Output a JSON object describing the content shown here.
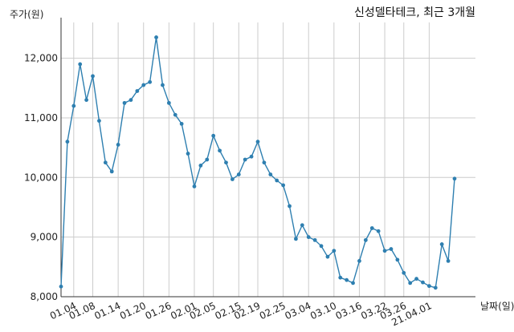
{
  "chart_data": {
    "type": "line",
    "title": "신성델타테크, 최근 3개월",
    "ylabel": "주가(원)",
    "xlabel": "날짜(일)",
    "ylim": [
      8000,
      12600
    ],
    "y_ticks": [
      8000,
      9000,
      10000,
      11000,
      12000
    ],
    "y_tick_labels": [
      "8,000",
      "9,000",
      "10,000",
      "11,000",
      "12,000"
    ],
    "x_tick_labels": [
      "01.04",
      "01.08",
      "01.14",
      "01.20",
      "01.26",
      "02.01",
      "02.05",
      "02.15",
      "02.19",
      "02.25",
      "03.04",
      "03.10",
      "03.16",
      "03.22",
      "03.26",
      "21.04.01"
    ],
    "x_tick_index": [
      2,
      5,
      9,
      13,
      17,
      21,
      24,
      28,
      31,
      35,
      39,
      43,
      47,
      51,
      54,
      58
    ],
    "grid": true,
    "series": [
      {
        "color": "#2e7fb0",
        "values": [
          8170,
          10600,
          11200,
          11900,
          11300,
          11700,
          10950,
          10250,
          10100,
          10550,
          11250,
          11300,
          11450,
          11550,
          11600,
          12350,
          11550,
          11250,
          11050,
          10900,
          10400,
          9850,
          10200,
          10300,
          10700,
          10450,
          10250,
          9970,
          10050,
          10300,
          10350,
          10600,
          10250,
          10050,
          9950,
          9870,
          9520,
          8970,
          9200,
          9000,
          8950,
          8850,
          8670,
          8770,
          8320,
          8280,
          8230,
          8600,
          8950,
          9150,
          9100,
          8770,
          8800,
          8620,
          8400,
          8230,
          8300,
          8240,
          8180,
          8150,
          8880,
          8600,
          9980
        ]
      }
    ]
  }
}
